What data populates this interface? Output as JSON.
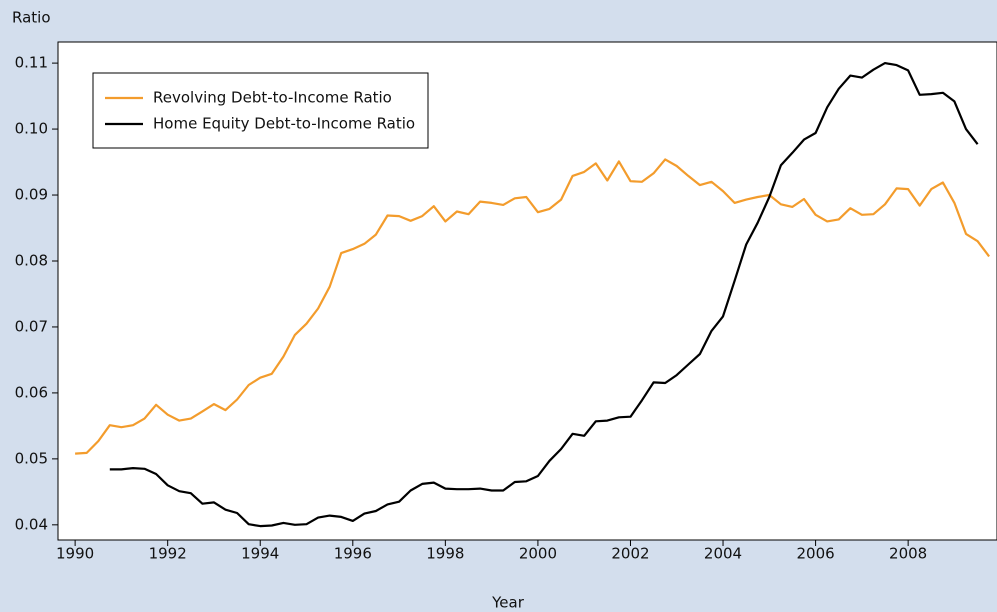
{
  "chart_data": {
    "type": "line",
    "y_label": "Ratio",
    "x_label": "Year",
    "x": [
      1990,
      1990.25,
      1990.5,
      1990.75,
      1991,
      1991.25,
      1991.5,
      1991.75,
      1992,
      1992.25,
      1992.5,
      1992.75,
      1993,
      1993.25,
      1993.5,
      1993.75,
      1994,
      1994.25,
      1994.5,
      1994.75,
      1995,
      1995.25,
      1995.5,
      1995.75,
      1996,
      1996.25,
      1996.5,
      1996.75,
      1997,
      1997.25,
      1997.5,
      1997.75,
      1998,
      1998.25,
      1998.5,
      1998.75,
      1999,
      1999.25,
      1999.5,
      1999.75,
      2000,
      2000.25,
      2000.5,
      2000.75,
      2001,
      2001.25,
      2001.5,
      2001.75,
      2002,
      2002.25,
      2002.5,
      2002.75,
      2003,
      2003.25,
      2003.5,
      2003.75,
      2004,
      2004.25,
      2004.5,
      2004.75,
      2005,
      2005.25,
      2005.5,
      2005.75,
      2006,
      2006.25,
      2006.5,
      2006.75,
      2007,
      2007.25,
      2007.5,
      2007.75,
      2008,
      2008.25,
      2008.5,
      2008.75,
      2009,
      2009.25,
      2009.5,
      2009.75
    ],
    "series": [
      {
        "name": "Revolving Debt-to-Income Ratio",
        "color": "#f39c2c",
        "values": [
          0.0508,
          0.0509,
          0.0527,
          0.0551,
          0.0548,
          0.0551,
          0.0561,
          0.0582,
          0.0567,
          0.0558,
          0.0561,
          0.0572,
          0.0583,
          0.0574,
          0.059,
          0.0612,
          0.0623,
          0.0629,
          0.0655,
          0.0688,
          0.0705,
          0.0728,
          0.0761,
          0.0812,
          0.0818,
          0.0826,
          0.084,
          0.0869,
          0.0868,
          0.0861,
          0.0868,
          0.0883,
          0.086,
          0.0875,
          0.0871,
          0.089,
          0.0888,
          0.0885,
          0.0895,
          0.0897,
          0.0874,
          0.0879,
          0.0893,
          0.0929,
          0.0935,
          0.0948,
          0.0922,
          0.0951,
          0.0921,
          0.092,
          0.0933,
          0.0954,
          0.0944,
          0.0929,
          0.0915,
          0.092,
          0.0906,
          0.0888,
          0.0893,
          0.0897,
          0.09,
          0.0886,
          0.0882,
          0.0894,
          0.087,
          0.086,
          0.0863,
          0.088,
          0.087,
          0.0871,
          0.0886,
          0.091,
          0.0909,
          0.0884,
          0.0909,
          0.0919,
          0.0888,
          0.0841,
          0.083,
          0.0807
        ]
      },
      {
        "name": "Home Equity Debt-to-Income Ratio",
        "color": "#000000",
        "values": [
          null,
          null,
          null,
          0.0484,
          0.0484,
          0.0486,
          0.0485,
          0.0477,
          0.046,
          0.0451,
          0.0448,
          0.0432,
          0.0434,
          0.0423,
          0.0418,
          0.0401,
          0.0398,
          0.0399,
          0.0403,
          0.04,
          0.0401,
          0.0411,
          0.0414,
          0.0412,
          0.0406,
          0.0417,
          0.0421,
          0.0431,
          0.0435,
          0.0452,
          0.0462,
          0.0464,
          0.0455,
          0.0454,
          0.0454,
          0.0455,
          0.0452,
          0.0452,
          0.0465,
          0.0466,
          0.0474,
          0.0497,
          0.0515,
          0.0538,
          0.0535,
          0.0557,
          0.0558,
          0.0563,
          0.0564,
          0.0589,
          0.0616,
          0.0615,
          0.0627,
          0.0643,
          0.0659,
          0.0694,
          0.0716,
          0.077,
          0.0825,
          0.0858,
          0.0897,
          0.0945,
          0.0964,
          0.0984,
          0.0994,
          0.1033,
          0.1061,
          0.1081,
          0.1078,
          0.109,
          0.11,
          0.1097,
          0.1089,
          0.1052,
          0.1053,
          0.1055,
          0.1042,
          0.1,
          0.0977,
          null
        ]
      }
    ],
    "xlim": [
      1989.63,
      2009.92
    ],
    "xticks": [
      1990,
      1992,
      1994,
      1996,
      1998,
      2000,
      2002,
      2004,
      2006,
      2008
    ],
    "ylim": [
      0.0377,
      0.1132
    ],
    "yticks": [
      {
        "value": 0.04,
        "label": "0.04"
      },
      {
        "value": 0.05,
        "label": "0.05"
      },
      {
        "value": 0.06,
        "label": "0.06"
      },
      {
        "value": 0.07,
        "label": "0.07"
      },
      {
        "value": 0.08,
        "label": "0.08"
      },
      {
        "value": 0.09,
        "label": "0.09"
      },
      {
        "value": 0.1,
        "label": "0.10"
      },
      {
        "value": 0.11,
        "label": "0.11"
      }
    ],
    "grid": false,
    "legend": "upper left"
  }
}
